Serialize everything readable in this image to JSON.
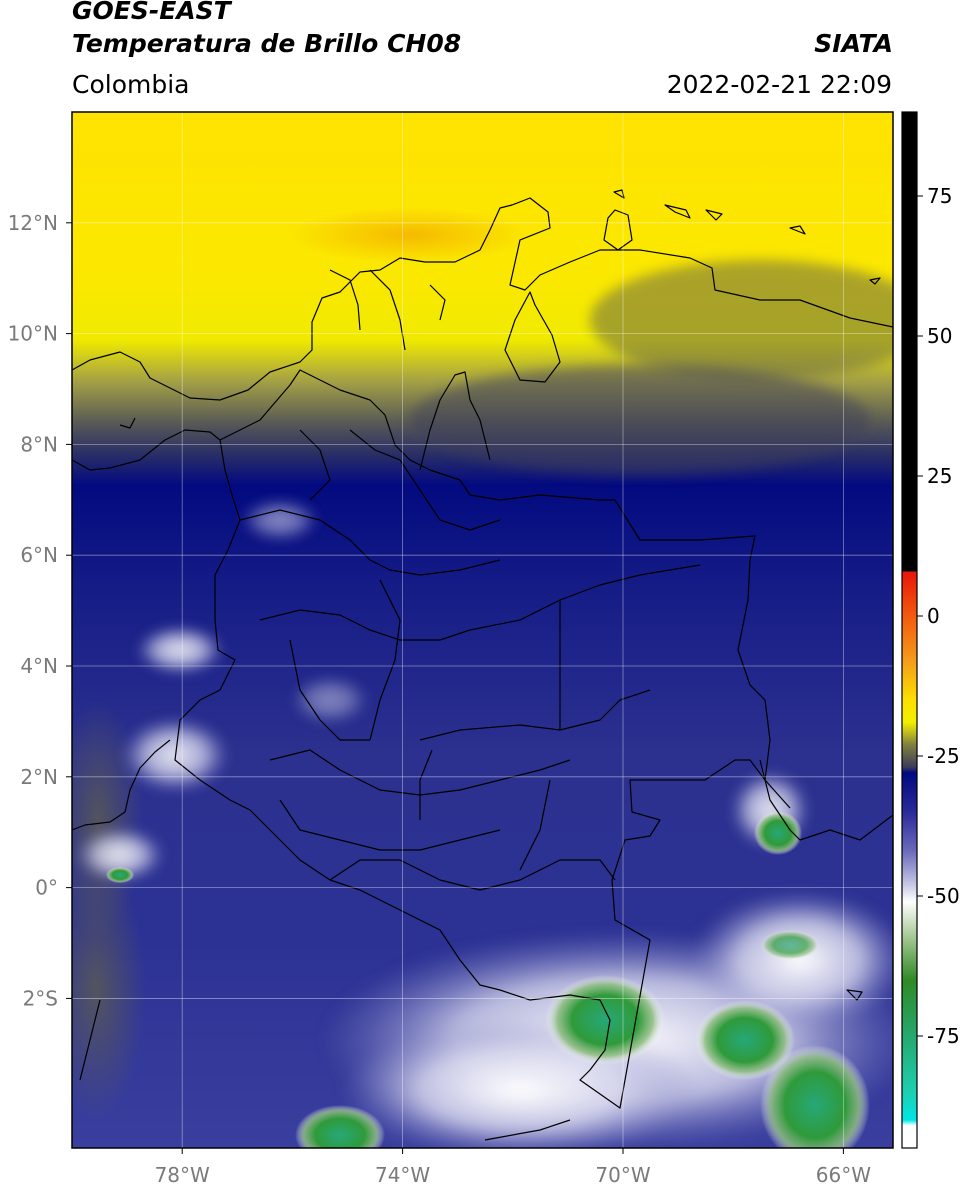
{
  "header": {
    "satellite": "GOES-EAST",
    "product": "Temperatura de Brillo CH08",
    "agency": "SIATA",
    "region": "Colombia",
    "timestamp": "2022-02-21 22:09"
  },
  "map": {
    "lon_range": [
      -80,
      -65.1
    ],
    "lat_range": [
      -4.7,
      14
    ],
    "lon_ticks": [
      {
        "value": -78,
        "label": "78°W"
      },
      {
        "value": -74,
        "label": "74°W"
      },
      {
        "value": -70,
        "label": "70°W"
      },
      {
        "value": -66,
        "label": "66°W"
      }
    ],
    "lat_ticks": [
      {
        "value": 12,
        "label": "12°N"
      },
      {
        "value": 10,
        "label": "10°N"
      },
      {
        "value": 8,
        "label": "8°N"
      },
      {
        "value": 6,
        "label": "6°N"
      },
      {
        "value": 4,
        "label": "4°N"
      },
      {
        "value": 2,
        "label": "2°N"
      },
      {
        "value": 0,
        "label": "0°"
      },
      {
        "value": -2,
        "label": "2°S"
      }
    ]
  },
  "colorbar": {
    "range": [
      -95,
      90
    ],
    "ticks": [
      {
        "value": 75,
        "label": "75"
      },
      {
        "value": 50,
        "label": "50"
      },
      {
        "value": 25,
        "label": "25"
      },
      {
        "value": 0,
        "label": "0"
      },
      {
        "value": -25,
        "label": "-25"
      },
      {
        "value": -50,
        "label": "-50"
      },
      {
        "value": -75,
        "label": "-75"
      }
    ],
    "stops": [
      {
        "value": 90,
        "color": "#000000"
      },
      {
        "value": 8,
        "color": "#000000"
      },
      {
        "value": 7.9,
        "color": "#e8160a"
      },
      {
        "value": 0,
        "color": "#f25a0e"
      },
      {
        "value": -8,
        "color": "#f59c1b"
      },
      {
        "value": -15,
        "color": "#fce000"
      },
      {
        "value": -19,
        "color": "#f2ef00"
      },
      {
        "value": -23,
        "color": "#808040"
      },
      {
        "value": -27,
        "color": "#3c3c5a"
      },
      {
        "value": -28,
        "color": "#000a80"
      },
      {
        "value": -35,
        "color": "#2a2a9a"
      },
      {
        "value": -42,
        "color": "#6b6bbb"
      },
      {
        "value": -48,
        "color": "#c8c8e6"
      },
      {
        "value": -51,
        "color": "#ffffff"
      },
      {
        "value": -58,
        "color": "#9bc28a"
      },
      {
        "value": -65,
        "color": "#2f8a25"
      },
      {
        "value": -75,
        "color": "#26a86e"
      },
      {
        "value": -85,
        "color": "#1ecfb0"
      },
      {
        "value": -90,
        "color": "#00e6e6"
      },
      {
        "value": -91,
        "color": "#ffffff"
      },
      {
        "value": -95,
        "color": "#ffffff"
      }
    ]
  }
}
